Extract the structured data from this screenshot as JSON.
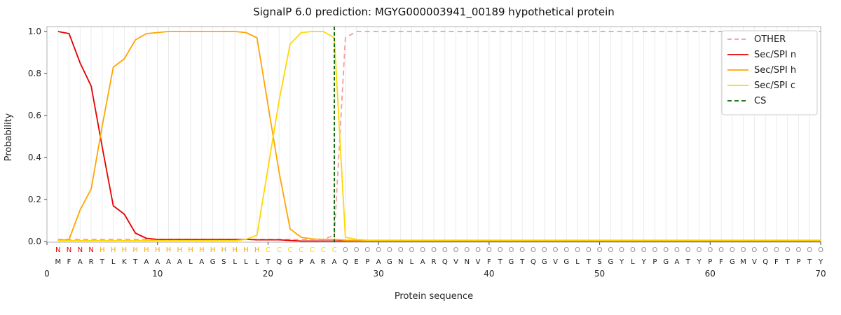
{
  "title": "SignalP 6.0 prediction: MGYG000003941_00189 hypothetical protein",
  "axes": {
    "xlabel": "Protein sequence",
    "ylabel": "Probability",
    "yticks": [
      "0.0",
      "0.2",
      "0.4",
      "0.6",
      "0.8",
      "1.0"
    ],
    "xticks": [
      "0",
      "10",
      "20",
      "30",
      "40",
      "50",
      "60",
      "70"
    ]
  },
  "legend": {
    "position": "upper right",
    "entries": [
      {
        "label": "OTHER",
        "color": "#f59c9c",
        "dashed": true
      },
      {
        "label": "Sec/SPI n",
        "color": "#e60000",
        "dashed": false
      },
      {
        "label": "Sec/SPI h",
        "color": "#ffa500",
        "dashed": false
      },
      {
        "label": "Sec/SPI c",
        "color": "#ffd700",
        "dashed": false
      },
      {
        "label": "CS",
        "color": "#006400",
        "dashed": true
      }
    ]
  },
  "chart_data": {
    "type": "line",
    "title": "SignalP 6.0 prediction: MGYG000003941_00189 hypothetical protein",
    "xlabel": "Protein sequence",
    "ylabel": "Probability",
    "xlim": [
      0,
      70
    ],
    "ylim": [
      0,
      1.05
    ],
    "grid": true,
    "legend_position": "upper right",
    "positions": [
      1,
      2,
      3,
      4,
      5,
      6,
      7,
      8,
      9,
      10,
      11,
      12,
      13,
      14,
      15,
      16,
      17,
      18,
      19,
      20,
      21,
      22,
      23,
      24,
      25,
      26,
      27,
      28,
      29,
      30,
      31,
      32,
      33,
      34,
      35,
      36,
      37,
      38,
      39,
      40,
      41,
      42,
      43,
      44,
      45,
      46,
      47,
      48,
      49,
      50,
      51,
      52,
      53,
      54,
      55,
      56,
      57,
      58,
      59,
      60,
      61,
      62,
      63,
      64,
      65,
      66,
      67,
      68,
      69,
      70
    ],
    "series": [
      {
        "name": "OTHER",
        "color": "#f59c9c",
        "style": "dashed",
        "values": [
          0.01,
          0.01,
          0.01,
          0.01,
          0.01,
          0.01,
          0.01,
          0.01,
          0.01,
          0.01,
          0.01,
          0.01,
          0.01,
          0.01,
          0.01,
          0.01,
          0.01,
          0.01,
          0.01,
          0.01,
          0.01,
          0.01,
          0.01,
          0.01,
          0.01,
          0.03,
          0.97,
          1.0,
          1.0,
          1.0,
          1.0,
          1.0,
          1.0,
          1.0,
          1.0,
          1.0,
          1.0,
          1.0,
          1.0,
          1.0,
          1.0,
          1.0,
          1.0,
          1.0,
          1.0,
          1.0,
          1.0,
          1.0,
          1.0,
          1.0,
          1.0,
          1.0,
          1.0,
          1.0,
          1.0,
          1.0,
          1.0,
          1.0,
          1.0,
          1.0,
          1.0,
          1.0,
          1.0,
          1.0,
          1.0,
          1.0,
          1.0,
          1.0,
          1.0,
          1.0
        ]
      },
      {
        "name": "Sec/SPI n",
        "color": "#e60000",
        "style": "solid",
        "values": [
          1.0,
          0.99,
          0.85,
          0.74,
          0.45,
          0.17,
          0.13,
          0.04,
          0.015,
          0.01,
          0.01,
          0.01,
          0.01,
          0.01,
          0.01,
          0.01,
          0.01,
          0.01,
          0.008,
          0.008,
          0.008,
          0.005,
          0.002,
          0.002,
          0.002,
          0.002,
          0.002,
          0.002,
          0.002,
          0.002,
          0.002,
          0.002,
          0.002,
          0.002,
          0.002,
          0.002,
          0.002,
          0.002,
          0.002,
          0.002,
          0.002,
          0.002,
          0.002,
          0.002,
          0.002,
          0.002,
          0.002,
          0.002,
          0.002,
          0.002,
          0.002,
          0.002,
          0.002,
          0.002,
          0.002,
          0.002,
          0.002,
          0.002,
          0.002,
          0.002,
          0.002,
          0.002,
          0.002,
          0.002,
          0.002,
          0.002,
          0.002,
          0.002,
          0.002,
          0.002
        ]
      },
      {
        "name": "Sec/SPI h",
        "color": "#ffa500",
        "style": "solid",
        "values": [
          0.005,
          0.01,
          0.15,
          0.25,
          0.55,
          0.83,
          0.87,
          0.96,
          0.99,
          0.995,
          1.0,
          1.0,
          1.0,
          1.0,
          1.0,
          1.0,
          1.0,
          0.995,
          0.97,
          0.65,
          0.33,
          0.06,
          0.02,
          0.012,
          0.01,
          0.01,
          0.006,
          0.005,
          0.005,
          0.005,
          0.005,
          0.005,
          0.005,
          0.005,
          0.005,
          0.005,
          0.005,
          0.005,
          0.005,
          0.005,
          0.005,
          0.005,
          0.005,
          0.005,
          0.005,
          0.005,
          0.005,
          0.005,
          0.005,
          0.005,
          0.005,
          0.005,
          0.005,
          0.005,
          0.005,
          0.005,
          0.005,
          0.005,
          0.005,
          0.005,
          0.005,
          0.005,
          0.005,
          0.005,
          0.005,
          0.005,
          0.005,
          0.005,
          0.005,
          0.005
        ]
      },
      {
        "name": "Sec/SPI c",
        "color": "#ffd700",
        "style": "solid",
        "values": [
          0.004,
          0.004,
          0.004,
          0.004,
          0.004,
          0.004,
          0.004,
          0.004,
          0.004,
          0.004,
          0.004,
          0.004,
          0.004,
          0.004,
          0.004,
          0.004,
          0.004,
          0.01,
          0.03,
          0.35,
          0.67,
          0.94,
          0.995,
          1.0,
          1.0,
          0.97,
          0.02,
          0.01,
          0.006,
          0.006,
          0.006,
          0.006,
          0.006,
          0.006,
          0.006,
          0.006,
          0.006,
          0.006,
          0.006,
          0.006,
          0.006,
          0.006,
          0.006,
          0.006,
          0.006,
          0.006,
          0.006,
          0.006,
          0.006,
          0.006,
          0.006,
          0.006,
          0.006,
          0.006,
          0.006,
          0.006,
          0.006,
          0.006,
          0.006,
          0.006,
          0.006,
          0.006,
          0.006,
          0.006,
          0.006,
          0.006,
          0.006,
          0.006,
          0.006,
          0.006
        ]
      }
    ],
    "cs_line": {
      "name": "CS",
      "position": 26,
      "color": "#006400",
      "style": "dashed"
    },
    "sequence": "MFARTLKTAAAALAGSLLLTQGPARAQEPAGNLARQVNVFTGTQGVGLTSGYLYPGATYPFGMVQFTPTY",
    "region_labels": "NNNNHHHHHHHHHHHHHHHCCCCCCCOOOOOOOOOOOOOOOOOOOOOOOOOOOOOOOOOOOOOOOOOOOO",
    "region_colors": {
      "N": "#e60000",
      "H": "#ffa500",
      "C": "#ffd700",
      "O": "#8c8c8c"
    }
  }
}
